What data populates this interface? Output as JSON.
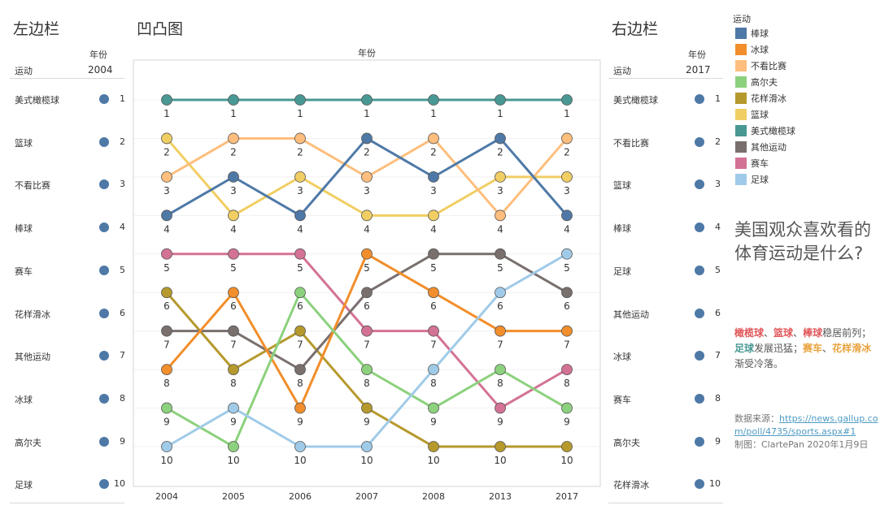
{
  "left_panel": {
    "title": "左边栏",
    "col_header_sport": "运动",
    "col_header_year": "年份",
    "year": "2004",
    "rows": [
      {
        "sport": "美式橄榄球",
        "rank": "1"
      },
      {
        "sport": "篮球",
        "rank": "2"
      },
      {
        "sport": "不看比赛",
        "rank": "3"
      },
      {
        "sport": "棒球",
        "rank": "4"
      },
      {
        "sport": "赛车",
        "rank": "5"
      },
      {
        "sport": "花样滑冰",
        "rank": "6"
      },
      {
        "sport": "其他运动",
        "rank": "7"
      },
      {
        "sport": "冰球",
        "rank": "8"
      },
      {
        "sport": "高尔夫",
        "rank": "9"
      },
      {
        "sport": "足球",
        "rank": "10"
      }
    ]
  },
  "right_panel": {
    "title": "右边栏",
    "col_header_sport": "运动",
    "col_header_year": "年份",
    "year": "2017",
    "rows": [
      {
        "sport": "美式橄榄球",
        "rank": "1"
      },
      {
        "sport": "不看比赛",
        "rank": "2"
      },
      {
        "sport": "篮球",
        "rank": "3"
      },
      {
        "sport": "棒球",
        "rank": "4"
      },
      {
        "sport": "足球",
        "rank": "5"
      },
      {
        "sport": "其他运动",
        "rank": "6"
      },
      {
        "sport": "冰球",
        "rank": "7"
      },
      {
        "sport": "赛车",
        "rank": "8"
      },
      {
        "sport": "高尔夫",
        "rank": "9"
      },
      {
        "sport": "花样滑冰",
        "rank": "10"
      }
    ]
  },
  "legend": {
    "title": "运动",
    "items": [
      {
        "name": "棒球",
        "color": "#4e79a7"
      },
      {
        "name": "冰球",
        "color": "#f28e2b"
      },
      {
        "name": "不看比赛",
        "color": "#ffbe7d"
      },
      {
        "name": "高尔夫",
        "color": "#8cd17d"
      },
      {
        "name": "花样滑冰",
        "color": "#b6992d"
      },
      {
        "name": "篮球",
        "color": "#f1ce63"
      },
      {
        "name": "美式橄榄球",
        "color": "#499894"
      },
      {
        "name": "其他运动",
        "color": "#79706e"
      },
      {
        "name": "赛车",
        "color": "#d37295"
      },
      {
        "name": "足球",
        "color": "#a0cbe8"
      }
    ]
  },
  "annotation": {
    "title": "美国观众喜欢看的体育运动是什么?",
    "note_parts": [
      {
        "text": "橄榄球",
        "color": "#e15759",
        "bold": true
      },
      {
        "text": "、",
        "color": "#555555",
        "bold": false
      },
      {
        "text": "篮球",
        "color": "#e15759",
        "bold": true
      },
      {
        "text": "、",
        "color": "#555555",
        "bold": false
      },
      {
        "text": "棒球",
        "color": "#e15759",
        "bold": true
      },
      {
        "text": "稳居前列；",
        "color": "#555555",
        "bold": false
      },
      {
        "text": "足球",
        "color": "#499894",
        "bold": true
      },
      {
        "text": "发展迅猛；",
        "color": "#555555",
        "bold": false
      },
      {
        "text": "赛车",
        "color": "#e8a33d",
        "bold": true
      },
      {
        "text": "、",
        "color": "#555555",
        "bold": false
      },
      {
        "text": "花样滑冰",
        "color": "#e8a33d",
        "bold": true
      },
      {
        "text": "渐受冷落。",
        "color": "#555555",
        "bold": false
      }
    ],
    "source_prefix": "数据来源：",
    "source_url": "https://news.gallup.com/poll/4735/sports.aspx#1",
    "credit": "制图：ClartePan 2020年1月9日"
  },
  "chart_data": {
    "type": "line",
    "title": "凹凸图",
    "xlabel": "年份",
    "categories": [
      "2004",
      "2005",
      "2006",
      "2007",
      "2008",
      "2013",
      "2017"
    ],
    "y_reversed": true,
    "ylim": [
      1,
      10
    ],
    "grid": true,
    "legend_position": "right",
    "series": [
      {
        "name": "美式橄榄球",
        "color": "#499894",
        "values": [
          1,
          1,
          1,
          1,
          1,
          1,
          1
        ]
      },
      {
        "name": "篮球",
        "color": "#f1ce63",
        "values": [
          2,
          4,
          3,
          4,
          4,
          3,
          3
        ]
      },
      {
        "name": "不看比赛",
        "color": "#ffbe7d",
        "values": [
          3,
          2,
          2,
          3,
          2,
          4,
          2
        ]
      },
      {
        "name": "棒球",
        "color": "#4e79a7",
        "values": [
          4,
          3,
          4,
          2,
          3,
          2,
          4
        ]
      },
      {
        "name": "赛车",
        "color": "#d37295",
        "values": [
          5,
          5,
          5,
          7,
          7,
          9,
          8
        ]
      },
      {
        "name": "花样滑冰",
        "color": "#b6992d",
        "values": [
          6,
          8,
          7,
          9,
          10,
          10,
          10
        ]
      },
      {
        "name": "其他运动",
        "color": "#79706e",
        "values": [
          7,
          7,
          8,
          6,
          5,
          5,
          6
        ]
      },
      {
        "name": "冰球",
        "color": "#f28e2b",
        "values": [
          8,
          6,
          9,
          5,
          6,
          7,
          7
        ]
      },
      {
        "name": "高尔夫",
        "color": "#8cd17d",
        "values": [
          9,
          10,
          6,
          8,
          9,
          8,
          9
        ]
      },
      {
        "name": "足球",
        "color": "#a0cbe8",
        "values": [
          10,
          9,
          10,
          10,
          8,
          6,
          5
        ]
      }
    ]
  }
}
